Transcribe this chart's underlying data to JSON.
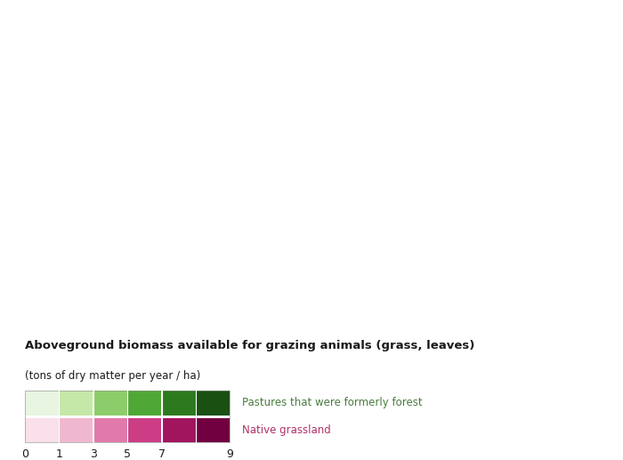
{
  "title_bold": "Aboveground biomass available for grazing animals (grass, leaves)",
  "title_sub": "(tons of dry matter per year / ha)",
  "legend_ticks": [
    0,
    1,
    3,
    5,
    7,
    9
  ],
  "forest_label": "Pastures that were formerly forest",
  "grassland_label": "Native grassland",
  "forest_color_label": "#4a7c3f",
  "grassland_color_label": "#b0306a",
  "green_colors": [
    "#e8f5e1",
    "#c5e8a8",
    "#8dcc6a",
    "#4fa835",
    "#2d7a1e",
    "#1a5012"
  ],
  "pink_colors": [
    "#f9e0ea",
    "#f0b8cf",
    "#e07aaa",
    "#cc3d86",
    "#a0155e",
    "#700040"
  ],
  "land_color": "#c8c8c8",
  "ocean_color": "#ffffff",
  "background_color": "#ffffff",
  "fig_width": 7.0,
  "fig_height": 5.17,
  "dpi": 100
}
